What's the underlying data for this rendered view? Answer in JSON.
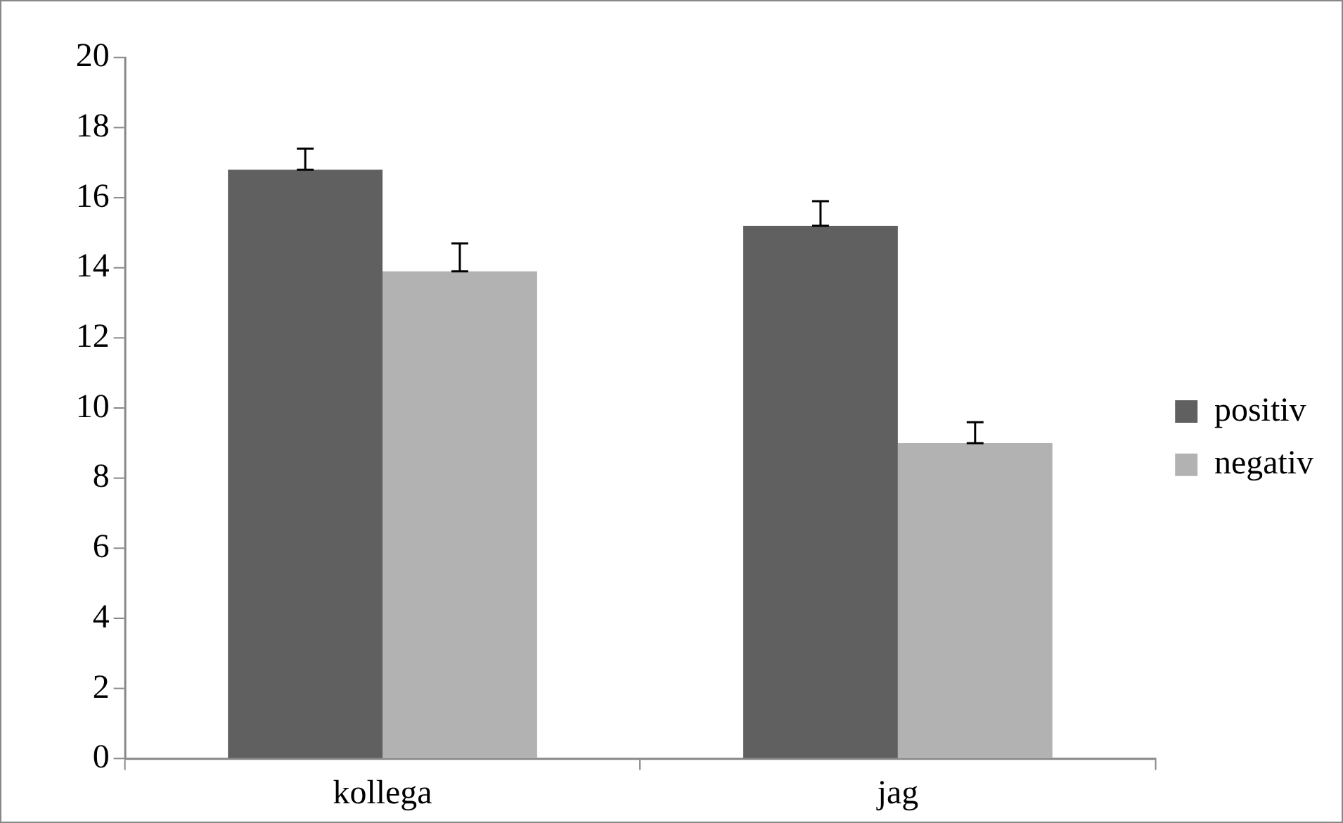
{
  "chart_data": {
    "type": "bar",
    "categories": [
      "kollega",
      "jag"
    ],
    "series": [
      {
        "name": "positiv",
        "color": "#606060",
        "values": [
          16.8,
          15.2
        ],
        "errors": [
          [
            16.8,
            17.4
          ],
          [
            15.2,
            15.9
          ]
        ]
      },
      {
        "name": "negativ",
        "color": "#b2b2b2",
        "values": [
          13.9,
          9.0
        ],
        "errors": [
          [
            13.9,
            14.7
          ],
          [
            9.0,
            9.6
          ]
        ]
      }
    ],
    "ylim": [
      0,
      20
    ],
    "yticks": [
      0,
      2,
      4,
      6,
      8,
      10,
      12,
      14,
      16,
      18,
      20
    ],
    "grid": false,
    "legend": "right"
  }
}
